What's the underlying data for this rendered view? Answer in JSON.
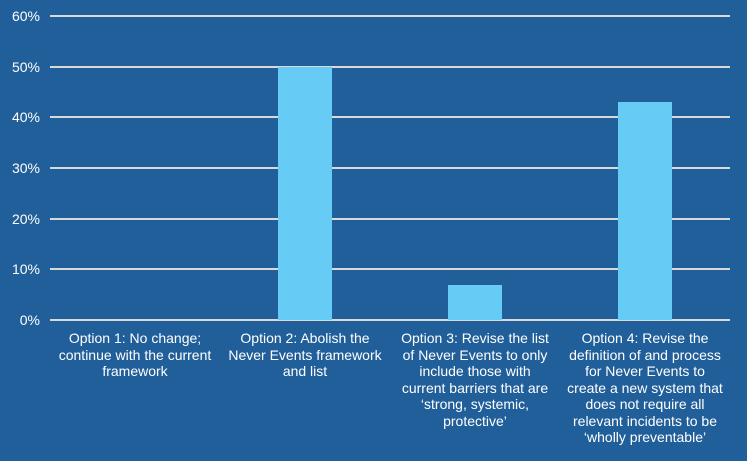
{
  "chart_data": {
    "type": "bar",
    "title": "",
    "xlabel": "",
    "ylabel": "",
    "ylim": [
      0,
      60
    ],
    "y_ticks": [
      "0%",
      "10%",
      "20%",
      "30%",
      "40%",
      "50%",
      "60%"
    ],
    "grid": true,
    "legend": null,
    "categories": [
      "Option 1: No change; continue with the current framework",
      "Option 2: Abolish the Never Events framework and list",
      "Option 3: Revise the list of Never Events to only include those with current barriers that are ‘strong, systemic, protective’",
      "Option 4: Revise the definition of and process for Never Events to create a new system that does not require all relevant incidents to be ‘wholly preventable’"
    ],
    "category_label_lines": [
      "Option 1: No change;\ncontinue with the current\nframework",
      "Option 2: Abolish the\nNever Events framework\nand list",
      "Option 3: Revise the list\nof Never Events to only\ninclude those with\ncurrent barriers that are\n‘strong, systemic,\nprotective’",
      "Option 4: Revise the\ndefinition of and process\nfor Never Events to\ncreate a new system that\ndoes not require all\nrelevant incidents to be\n‘wholly preventable’"
    ],
    "values": [
      0,
      50,
      7,
      43
    ],
    "unit": "%"
  },
  "colors": {
    "background": "#215f9a",
    "bar": "#66ccf5",
    "gridline": "#d9d9d9",
    "text": "#ffffff"
  }
}
